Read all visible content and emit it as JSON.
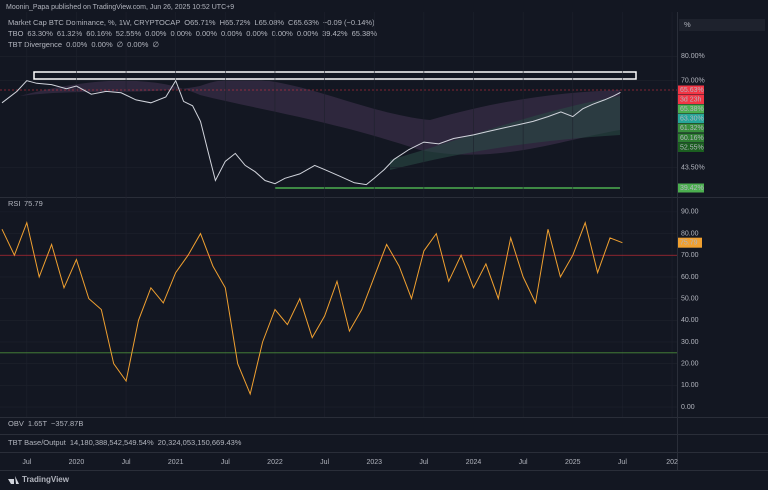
{
  "header": {
    "publisher": "Moonin_Papa published on TradingView.com, Jun 26, 2025 10:52 UTC+9",
    "scale_button": "%",
    "footer": "TradingView"
  },
  "legends": [
    {
      "items": [
        {
          "text": "Market Cap BTC Dominance, %, 1W, CRYPTOCAP",
          "color": "#d1d4dc"
        },
        {
          "text": "O65.71%",
          "color": "#f23645"
        },
        {
          "text": "H65.72%",
          "color": "#f23645"
        },
        {
          "text": "L65.08%",
          "color": "#f23645"
        },
        {
          "text": "C65.63%",
          "color": "#f23645"
        },
        {
          "text": "−0.09 (−0.14%)",
          "color": "#f23645"
        }
      ]
    },
    {
      "items": [
        {
          "text": "TBO",
          "color": "#d1d4dc"
        },
        {
          "text": "63.30%",
          "color": "#26a69a"
        },
        {
          "text": "61.32%",
          "color": "#4caf50"
        },
        {
          "text": "60.16%",
          "color": "#81c784"
        },
        {
          "text": "52.55%",
          "color": "#a5d6a7"
        },
        {
          "text": "0.00%",
          "color": "#4caf50"
        },
        {
          "text": "0.00%",
          "color": "#ff9800"
        },
        {
          "text": "0.00%",
          "color": "#4caf50"
        },
        {
          "text": "0.00%",
          "color": "#e040fb"
        },
        {
          "text": "0.00%",
          "color": "#ff9800"
        },
        {
          "text": "0.00%",
          "color": "#2962ff"
        },
        {
          "text": "0.00%",
          "color": "#f23645"
        },
        {
          "text": "39.42%",
          "color": "#4caf50"
        },
        {
          "text": "65.38%",
          "color": "#4caf50"
        }
      ]
    },
    {
      "items": [
        {
          "text": "TBT Divergence",
          "color": "#d1d4dc"
        },
        {
          "text": "0.00%",
          "color": "#4caf50"
        },
        {
          "text": "0.00%",
          "color": "#ff9800"
        },
        {
          "text": "∅",
          "color": "#b2b5be"
        },
        {
          "text": "0.00%",
          "color": "#f23645"
        },
        {
          "text": "∅",
          "color": "#b2b5be"
        }
      ]
    }
  ],
  "price_tags": [
    {
      "label": "65.63%",
      "color": "#f23645"
    },
    {
      "label": "3d 23h",
      "color": "#f23645"
    },
    {
      "label": "65.38%",
      "color": "#4caf50"
    },
    {
      "label": "63.30%",
      "color": "#26a69a"
    },
    {
      "label": "61.32%",
      "color": "#388e3c"
    },
    {
      "label": "60.16%",
      "color": "#2e7d32"
    },
    {
      "label": "52.55%",
      "color": "#1b5e20"
    },
    {
      "label": "39.42%",
      "color": "#4caf50"
    }
  ],
  "obv": {
    "items": [
      {
        "text": "OBV",
        "color": "#d1d4dc"
      },
      {
        "text": "1.65T",
        "color": "#2962ff"
      },
      {
        "text": "−357.87B",
        "color": "#d1d4dc"
      }
    ]
  },
  "tbt": {
    "items": [
      {
        "text": "TBT Base/Output",
        "color": "#d1d4dc"
      },
      {
        "text": "14,180,388,542,549.54%",
        "color": "#787b86"
      },
      {
        "text": "20,324,053,150,669.43%",
        "color": "#ffeb3b"
      }
    ]
  },
  "chart_data": [
    {
      "type": "line",
      "log_scale": true,
      "color": "#d1d4dc",
      "x": [
        2019.25,
        2019.4,
        2019.5,
        2019.6,
        2019.75,
        2019.9,
        2020.0,
        2020.15,
        2020.3,
        2020.45,
        2020.6,
        2020.75,
        2020.9,
        2021.0,
        2021.08,
        2021.17,
        2021.25,
        2021.33,
        2021.4,
        2021.5,
        2021.6,
        2021.7,
        2021.8,
        2021.9,
        2022.0,
        2022.1,
        2022.25,
        2022.4,
        2022.5,
        2022.65,
        2022.8,
        2022.92,
        2023.0,
        2023.1,
        2023.2,
        2023.35,
        2023.5,
        2023.65,
        2023.8,
        2024.0,
        2024.15,
        2024.3,
        2024.45,
        2024.6,
        2024.75,
        2024.88,
        2025.0,
        2025.1,
        2025.2,
        2025.32,
        2025.42,
        2025.48
      ],
      "values": [
        62,
        66,
        70,
        69,
        68.5,
        67,
        68,
        65,
        66,
        65.5,
        63,
        62,
        64,
        70,
        62.5,
        61,
        56,
        47,
        40.5,
        45,
        47,
        44,
        42.5,
        40.5,
        39.8,
        41,
        42,
        44,
        43,
        41.5,
        40,
        39.6,
        41,
        43,
        45.5,
        48,
        50,
        49.5,
        51,
        52,
        53,
        54,
        55,
        56,
        57.5,
        59,
        57.5,
        60,
        61.5,
        63,
        64.5,
        65.63
      ],
      "xlim": [
        2019.23,
        2026.05
      ],
      "ylim": [
        37,
        102
      ],
      "yticks": [
        {
          "value": 80,
          "label": "80.00%"
        },
        {
          "value": 70,
          "label": "70.00%"
        },
        {
          "value": 43.5,
          "label": "43.50%"
        }
      ],
      "xticks": [
        {
          "value": 2019.5,
          "label": "Jul"
        },
        2020,
        {
          "value": 2020.5,
          "label": "Jul"
        },
        2021,
        {
          "value": 2021.5,
          "label": "Jul"
        },
        2022,
        {
          "value": 2022.5,
          "label": "Jul"
        },
        2023,
        {
          "value": 2023.5,
          "label": "Jul"
        },
        2024,
        {
          "value": 2024.5,
          "label": "Jul"
        },
        2025,
        {
          "value": 2025.5,
          "label": "Jul"
        },
        {
          "value": 2026,
          "label": "202"
        }
      ]
    },
    {
      "type": "line",
      "title": "RSI",
      "value_label": "75.79",
      "color": "#f0a030",
      "x": [
        2019.25,
        2019.375,
        2019.5,
        2019.625,
        2019.75,
        2019.875,
        2020,
        2020.125,
        2020.25,
        2020.375,
        2020.5,
        2020.625,
        2020.75,
        2020.875,
        2021,
        2021.125,
        2021.25,
        2021.375,
        2021.5,
        2021.625,
        2021.75,
        2021.875,
        2022,
        2022.125,
        2022.25,
        2022.375,
        2022.5,
        2022.625,
        2022.75,
        2022.875,
        2023,
        2023.125,
        2023.25,
        2023.375,
        2023.5,
        2023.625,
        2023.75,
        2023.875,
        2024,
        2024.125,
        2024.25,
        2024.375,
        2024.5,
        2024.625,
        2024.75,
        2024.875,
        2025,
        2025.125,
        2025.25,
        2025.375,
        2025.5
      ],
      "values": [
        82,
        70,
        85,
        60,
        75,
        55,
        68,
        50,
        45,
        20,
        12,
        40,
        55,
        48,
        62,
        70,
        80,
        65,
        55,
        20,
        6,
        30,
        45,
        38,
        50,
        32,
        42,
        58,
        35,
        45,
        60,
        75,
        65,
        50,
        72,
        80,
        58,
        70,
        55,
        66,
        50,
        78,
        60,
        48,
        82,
        60,
        70,
        85,
        62,
        78,
        75.79
      ],
      "xlim": [
        2019.23,
        2026.05
      ],
      "ylim": [
        -4.6,
        96.4
      ],
      "yticks": [
        {
          "value": 90,
          "label": "90.00"
        },
        {
          "value": 80,
          "label": "80.00"
        },
        {
          "value": 70,
          "label": "70.00"
        },
        {
          "value": 60,
          "label": "60.00"
        },
        {
          "value": 50,
          "label": "50.00"
        },
        {
          "value": 40,
          "label": "40.00"
        },
        {
          "value": 30,
          "label": "30.00"
        },
        {
          "value": 20,
          "label": "20.00"
        },
        {
          "value": 10,
          "label": "10.00"
        },
        {
          "value": 0,
          "label": "0.00"
        }
      ],
      "bands": [
        {
          "value": 70,
          "color": "#b22833"
        },
        {
          "value": 25,
          "color": "#4a8a3a"
        }
      ]
    }
  ]
}
